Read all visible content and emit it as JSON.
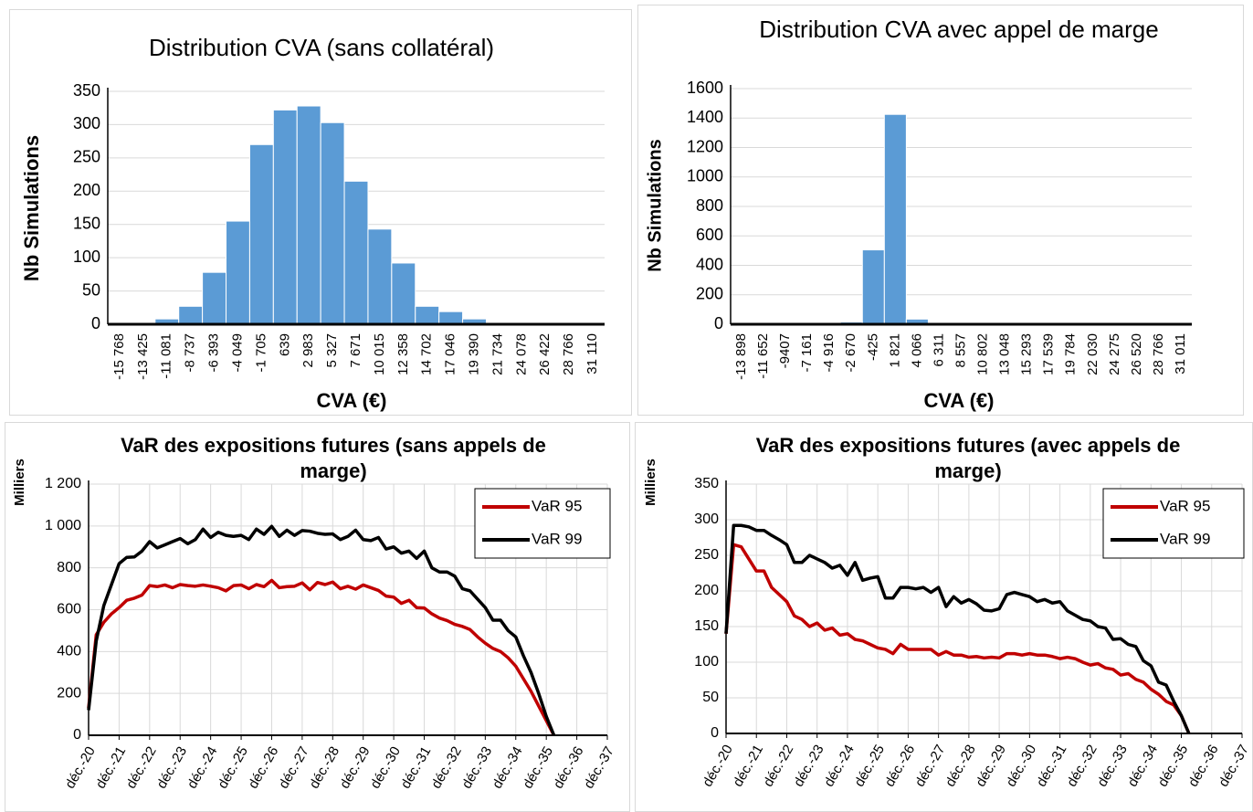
{
  "chart_data": [
    {
      "type": "bar",
      "title": "Distribution CVA (sans collatéral)",
      "y_label": "Nb Simulations",
      "x_label": "CVA (€)",
      "categories": [
        "-15 768",
        "-13 425",
        "-11 081",
        "-8 737",
        "-6 393",
        "-4 049",
        "-1 705",
        "639",
        "2 983",
        "5 327",
        "7 671",
        "10 015",
        "12 358",
        "14 702",
        "17 046",
        "19 390",
        "21 734",
        "24 078",
        "26 422",
        "28 766",
        "31 110"
      ],
      "values": [
        0,
        0,
        8,
        27,
        78,
        155,
        270,
        322,
        328,
        303,
        215,
        143,
        92,
        27,
        19,
        8,
        0,
        0,
        0,
        0,
        0
      ],
      "color": "#5b9bd5",
      "ylim": [
        0,
        350
      ],
      "yticks": [
        0,
        50,
        100,
        150,
        200,
        250,
        300,
        350
      ],
      "grid": true
    },
    {
      "type": "bar",
      "title": "Distribution CVA avec appel de marge",
      "y_label": "Nb Simulations",
      "x_label": "CVA (€)",
      "categories": [
        "-13 898",
        "-11 652",
        "-9407",
        "-7 161",
        "-4 916",
        "-2 670",
        "-425",
        "1 821",
        "4 066",
        "6 311",
        "8 557",
        "10 802",
        "13 048",
        "15 293",
        "17 539",
        "19 784",
        "22 030",
        "24 275",
        "26 520",
        "28 766",
        "31 011"
      ],
      "values": [
        0,
        0,
        0,
        0,
        0,
        15,
        505,
        1425,
        35,
        0,
        0,
        0,
        0,
        0,
        0,
        0,
        0,
        0,
        0,
        0,
        0
      ],
      "color": "#5b9bd5",
      "ylim": [
        0,
        1600
      ],
      "yticks": [
        0,
        200,
        400,
        600,
        800,
        1000,
        1200,
        1400,
        1600
      ],
      "grid": true
    },
    {
      "type": "line",
      "title": "VaR des expositions futures (sans appels de marge)",
      "y_label": "Milliers",
      "categories": [
        "déc.-20",
        null,
        null,
        null,
        "déc.-21",
        null,
        null,
        null,
        "déc.-22",
        null,
        null,
        null,
        "déc.-23",
        null,
        null,
        null,
        "déc.-24",
        null,
        null,
        null,
        "déc.-25",
        null,
        null,
        null,
        "déc.-26",
        null,
        null,
        null,
        "déc.-27",
        null,
        null,
        null,
        "déc.-28",
        null,
        null,
        null,
        "déc.-29",
        null,
        null,
        null,
        "déc.-30",
        null,
        null,
        null,
        "déc.-31",
        null,
        null,
        null,
        "déc.-32",
        null,
        null,
        null,
        "déc.-33",
        null,
        null,
        null,
        "déc.-34",
        null,
        null,
        null,
        "déc.-35",
        null,
        null,
        null,
        "déc.-36",
        null,
        null,
        null,
        "déc.-37"
      ],
      "series": [
        {
          "name": "VaR 95",
          "color": "#c00000",
          "values": [
            130,
            480,
            540,
            580,
            610,
            645,
            655,
            670,
            715,
            710,
            718,
            705,
            720,
            715,
            712,
            718,
            712,
            705,
            690,
            715,
            718,
            700,
            720,
            710,
            740,
            705,
            710,
            712,
            728,
            695,
            730,
            720,
            732,
            700,
            712,
            698,
            718,
            705,
            692,
            665,
            660,
            630,
            645,
            610,
            608,
            580,
            560,
            548,
            530,
            520,
            505,
            470,
            440,
            415,
            400,
            370,
            330,
            270,
            210,
            140,
            70,
            0,
            null,
            null,
            null,
            null,
            null,
            null,
            null
          ]
        },
        {
          "name": "VaR 99",
          "color": "#000000",
          "values": [
            120,
            450,
            620,
            720,
            820,
            850,
            852,
            880,
            925,
            895,
            910,
            925,
            940,
            915,
            935,
            985,
            945,
            970,
            955,
            950,
            955,
            935,
            985,
            960,
            998,
            950,
            980,
            955,
            978,
            975,
            965,
            960,
            962,
            935,
            950,
            980,
            935,
            930,
            945,
            890,
            900,
            870,
            880,
            845,
            880,
            800,
            780,
            780,
            760,
            700,
            690,
            650,
            610,
            550,
            550,
            500,
            470,
            380,
            300,
            200,
            90,
            0,
            null,
            null,
            null,
            null,
            null,
            null,
            null
          ]
        }
      ],
      "ylim": [
        0,
        1200
      ],
      "yticks": [
        0,
        200,
        400,
        600,
        800,
        {
          "value": 1000,
          "label": "1 000"
        },
        {
          "value": 1200,
          "label": "1 200"
        }
      ],
      "grid": true,
      "legend": "upper right"
    },
    {
      "type": "line",
      "title": "VaR des expositions futures (avec appels de marge)",
      "y_label": "Milliers",
      "categories": [
        "déc.-20",
        null,
        null,
        null,
        "déc.-21",
        null,
        null,
        null,
        "déc.-22",
        null,
        null,
        null,
        "déc.-23",
        null,
        null,
        null,
        "déc.-24",
        null,
        null,
        null,
        "déc.-25",
        null,
        null,
        null,
        "déc.-26",
        null,
        null,
        null,
        "déc.-27",
        null,
        null,
        null,
        "déc.-28",
        null,
        null,
        null,
        "déc.-29",
        null,
        null,
        null,
        "déc.-30",
        null,
        null,
        null,
        "déc.-31",
        null,
        null,
        null,
        "déc.-32",
        null,
        null,
        null,
        "déc.-33",
        null,
        null,
        null,
        "déc.-34",
        null,
        null,
        null,
        "déc.-35",
        null,
        null,
        null,
        "déc.-36",
        null,
        null,
        null,
        "déc.-37"
      ],
      "series": [
        {
          "name": "VaR 95",
          "color": "#c00000",
          "values": [
            140,
            265,
            262,
            245,
            228,
            228,
            205,
            195,
            185,
            165,
            160,
            150,
            155,
            145,
            148,
            138,
            140,
            132,
            130,
            125,
            120,
            118,
            112,
            125,
            118,
            118,
            118,
            118,
            110,
            115,
            110,
            110,
            107,
            108,
            106,
            107,
            106,
            112,
            112,
            110,
            112,
            110,
            110,
            108,
            105,
            107,
            105,
            100,
            96,
            98,
            92,
            90,
            82,
            84,
            76,
            72,
            62,
            55,
            45,
            40,
            25,
            0,
            null,
            null,
            null,
            null,
            null,
            null,
            null
          ]
        },
        {
          "name": "VaR 99",
          "color": "#000000",
          "values": [
            140,
            292,
            292,
            290,
            285,
            285,
            278,
            272,
            265,
            240,
            240,
            250,
            245,
            240,
            232,
            236,
            222,
            240,
            215,
            218,
            220,
            190,
            190,
            205,
            205,
            203,
            205,
            198,
            205,
            178,
            192,
            183,
            188,
            182,
            173,
            172,
            175,
            195,
            198,
            195,
            192,
            185,
            188,
            183,
            185,
            172,
            166,
            160,
            158,
            150,
            148,
            132,
            133,
            125,
            122,
            102,
            95,
            72,
            68,
            45,
            25,
            0,
            null,
            null,
            null,
            null,
            null,
            null,
            null
          ]
        }
      ],
      "ylim": [
        0,
        350
      ],
      "yticks": [
        0,
        50,
        100,
        150,
        200,
        250,
        300,
        350
      ],
      "grid": true,
      "legend": "upper right"
    }
  ]
}
